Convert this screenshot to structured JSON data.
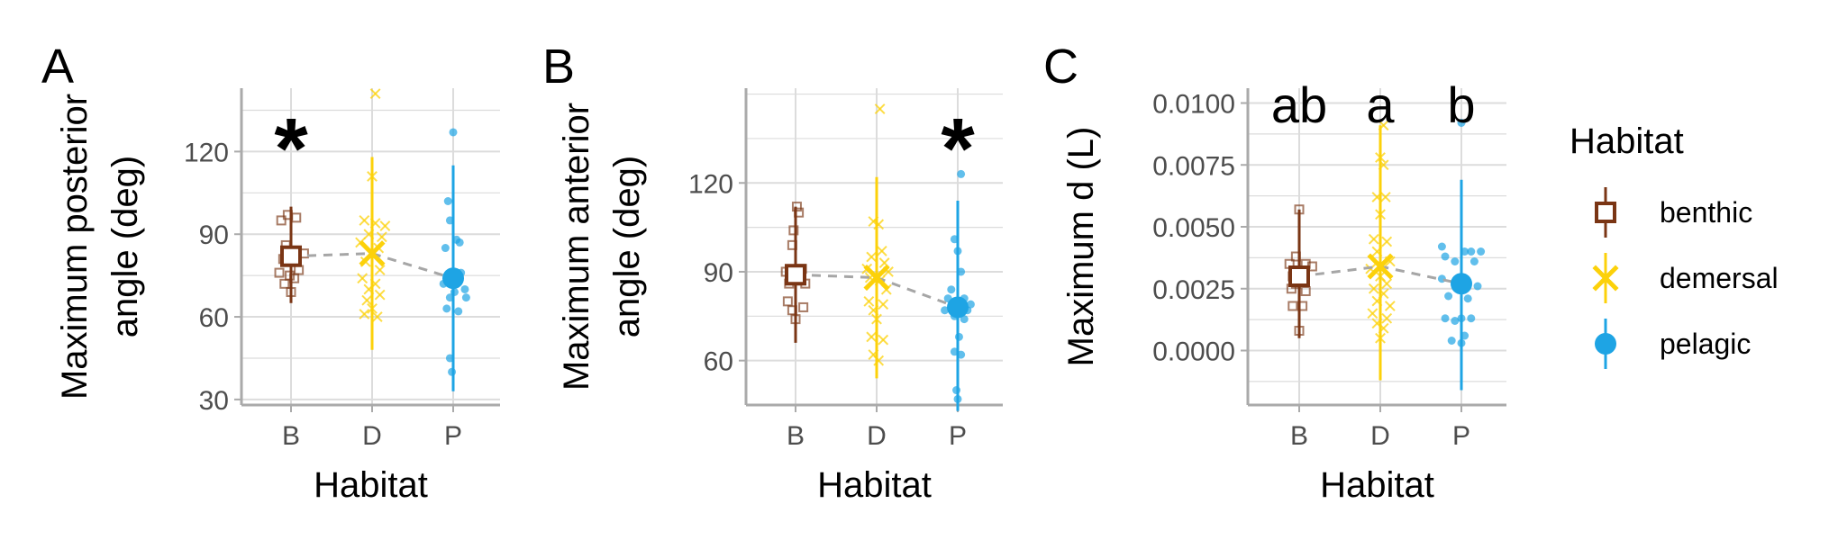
{
  "colors": {
    "benthic": "#7a3514",
    "demersal": "#fcd10a",
    "pelagic": "#1ea4e4",
    "grid": "#dcdcdc",
    "axis": "#aaaaaa",
    "trend": "#a6a6a6"
  },
  "legend": {
    "title": "Habitat",
    "items": [
      {
        "key": "benthic",
        "label": "benthic",
        "shape": "square"
      },
      {
        "key": "demersal",
        "label": "demersal",
        "shape": "cross"
      },
      {
        "key": "pelagic",
        "label": "pelagic",
        "shape": "circle"
      }
    ]
  },
  "chart_data": [
    {
      "type": "scatter",
      "panel": "A",
      "xlabel": "Habitat",
      "ylabel": [
        "Maximum posterior",
        "angle (deg)"
      ],
      "categories": [
        "B",
        "D",
        "P"
      ],
      "ylim": [
        28,
        143
      ],
      "yticks": [
        30,
        60,
        90,
        120
      ],
      "yticklabels": [
        "30",
        "60",
        "90",
        "120"
      ],
      "annotations": [
        {
          "category": "B",
          "text": "*",
          "style": "star"
        }
      ],
      "series": [
        {
          "key": "benthic",
          "mean": 82,
          "lo": 65,
          "hi": 100,
          "points": [
            [
              -0.15,
              95
            ],
            [
              -0.05,
              97
            ],
            [
              0.08,
              96
            ],
            [
              0.2,
              83
            ],
            [
              -0.08,
              86
            ],
            [
              -0.12,
              81
            ],
            [
              -0.18,
              76
            ],
            [
              -0.02,
              75
            ],
            [
              0.12,
              77
            ],
            [
              0.05,
              74
            ],
            [
              -0.1,
              72
            ],
            [
              0.0,
              69
            ]
          ]
        },
        {
          "key": "demersal",
          "mean": 83,
          "lo": 48,
          "hi": 118,
          "points": [
            [
              0.05,
              141
            ],
            [
              0.0,
              111
            ],
            [
              -0.12,
              95
            ],
            [
              0.05,
              94
            ],
            [
              0.2,
              93
            ],
            [
              -0.05,
              90
            ],
            [
              0.15,
              89
            ],
            [
              -0.18,
              87
            ],
            [
              0.1,
              85
            ],
            [
              -0.1,
              80
            ],
            [
              0.12,
              77
            ],
            [
              -0.15,
              74
            ],
            [
              0.05,
              72
            ],
            [
              -0.05,
              70
            ],
            [
              0.12,
              68
            ],
            [
              -0.08,
              66
            ],
            [
              0.0,
              63
            ],
            [
              -0.12,
              61
            ],
            [
              0.08,
              60
            ]
          ]
        },
        {
          "key": "pelagic",
          "mean": 74,
          "lo": 33,
          "hi": 115,
          "points": [
            [
              0.0,
              127
            ],
            [
              -0.08,
              102
            ],
            [
              -0.05,
              95
            ],
            [
              0.05,
              88
            ],
            [
              0.1,
              87
            ],
            [
              -0.12,
              85
            ],
            [
              0.12,
              76
            ],
            [
              -0.15,
              72
            ],
            [
              0.18,
              70
            ],
            [
              0.02,
              69
            ],
            [
              -0.05,
              67
            ],
            [
              0.2,
              67
            ],
            [
              -0.1,
              63
            ],
            [
              0.08,
              62
            ],
            [
              -0.05,
              45
            ],
            [
              -0.02,
              40
            ]
          ]
        }
      ]
    },
    {
      "type": "scatter",
      "panel": "B",
      "xlabel": "Habitat",
      "ylabel": [
        "Maximum anterior",
        "angle (deg)"
      ],
      "categories": [
        "B",
        "D",
        "P"
      ],
      "ylim": [
        45,
        152
      ],
      "yticks": [
        60,
        90,
        120
      ],
      "yticklabels": [
        "60",
        "90",
        "120"
      ],
      "annotations": [
        {
          "category": "P",
          "text": "*",
          "style": "star"
        }
      ],
      "series": [
        {
          "key": "benthic",
          "mean": 89,
          "lo": 66,
          "hi": 112,
          "points": [
            [
              0.02,
              112
            ],
            [
              0.05,
              110
            ],
            [
              -0.03,
              104
            ],
            [
              -0.05,
              99
            ],
            [
              0.1,
              91
            ],
            [
              -0.15,
              90
            ],
            [
              -0.1,
              86
            ],
            [
              0.15,
              86
            ],
            [
              -0.12,
              80
            ],
            [
              0.12,
              78
            ],
            [
              -0.05,
              77
            ],
            [
              0.0,
              74
            ]
          ]
        },
        {
          "key": "demersal",
          "mean": 88,
          "lo": 54,
          "hi": 122,
          "points": [
            [
              0.05,
              145
            ],
            [
              -0.05,
              107
            ],
            [
              0.03,
              106
            ],
            [
              0.08,
              97
            ],
            [
              -0.08,
              95
            ],
            [
              0.12,
              93
            ],
            [
              -0.15,
              91
            ],
            [
              0.18,
              90
            ],
            [
              -0.1,
              88
            ],
            [
              0.05,
              87
            ],
            [
              0.15,
              84
            ],
            [
              -0.12,
              80
            ],
            [
              0.1,
              79
            ],
            [
              -0.05,
              77
            ],
            [
              0.0,
              74
            ],
            [
              -0.08,
              68
            ],
            [
              0.1,
              67
            ],
            [
              -0.05,
              62
            ],
            [
              0.03,
              60
            ]
          ]
        },
        {
          "key": "pelagic",
          "mean": 78,
          "lo": 43,
          "hi": 114,
          "points": [
            [
              0.05,
              123
            ],
            [
              -0.05,
              101
            ],
            [
              0.0,
              97
            ],
            [
              0.05,
              90
            ],
            [
              -0.1,
              84
            ],
            [
              0.1,
              81
            ],
            [
              -0.15,
              81
            ],
            [
              0.2,
              79
            ],
            [
              -0.2,
              77
            ],
            [
              0.15,
              77
            ],
            [
              -0.05,
              75
            ],
            [
              0.1,
              74
            ],
            [
              0.02,
              68
            ],
            [
              -0.05,
              63
            ],
            [
              0.05,
              62
            ],
            [
              -0.02,
              50
            ],
            [
              0.0,
              47
            ]
          ]
        }
      ]
    },
    {
      "type": "scatter",
      "panel": "C",
      "xlabel": "Habitat",
      "ylabel": [
        "Maximum d (L)"
      ],
      "categories": [
        "B",
        "D",
        "P"
      ],
      "ylim": [
        -0.0022,
        0.0106
      ],
      "yticks": [
        0.0,
        0.0025,
        0.005,
        0.0075,
        0.01
      ],
      "yticklabels": [
        "0.0000",
        "0.0025",
        "0.0050",
        "0.0075",
        "0.0100"
      ],
      "annotations": [
        {
          "category": "B",
          "text": "ab",
          "style": "letter"
        },
        {
          "category": "D",
          "text": "a",
          "style": "letter"
        },
        {
          "category": "P",
          "text": "b",
          "style": "letter"
        }
      ],
      "series": [
        {
          "key": "benthic",
          "mean": 0.003,
          "lo": 0.0005,
          "hi": 0.0057,
          "points": [
            [
              0.0,
              0.0057
            ],
            [
              -0.05,
              0.0038
            ],
            [
              -0.15,
              0.0035
            ],
            [
              0.1,
              0.0035
            ],
            [
              0.2,
              0.0034
            ],
            [
              -0.1,
              0.003
            ],
            [
              0.05,
              0.0029
            ],
            [
              -0.05,
              0.0027
            ],
            [
              -0.12,
              0.0025
            ],
            [
              0.1,
              0.0024
            ],
            [
              -0.1,
              0.0018
            ],
            [
              0.05,
              0.0018
            ],
            [
              0.0,
              0.0008
            ]
          ]
        },
        {
          "key": "demersal",
          "mean": 0.0034,
          "lo": -0.0012,
          "hi": 0.0091,
          "points": [
            [
              0.05,
              0.0091
            ],
            [
              0.0,
              0.0078
            ],
            [
              0.05,
              0.0075
            ],
            [
              -0.05,
              0.0062
            ],
            [
              0.08,
              0.0062
            ],
            [
              0.0,
              0.0055
            ],
            [
              -0.1,
              0.0045
            ],
            [
              0.1,
              0.0044
            ],
            [
              -0.05,
              0.004
            ],
            [
              0.15,
              0.0036
            ],
            [
              -0.15,
              0.0033
            ],
            [
              0.0,
              0.003
            ],
            [
              0.1,
              0.0027
            ],
            [
              -0.1,
              0.0025
            ],
            [
              0.05,
              0.0023
            ],
            [
              -0.05,
              0.002
            ],
            [
              0.15,
              0.0018
            ],
            [
              -0.12,
              0.0015
            ],
            [
              0.1,
              0.0013
            ],
            [
              -0.05,
              0.0011
            ],
            [
              0.05,
              0.0009
            ],
            [
              0.0,
              0.0005
            ]
          ]
        },
        {
          "key": "pelagic",
          "mean": 0.0027,
          "lo": -0.0016,
          "hi": 0.0069,
          "points": [
            [
              0.0,
              0.0092
            ],
            [
              -0.3,
              0.0042
            ],
            [
              0.05,
              0.004
            ],
            [
              0.15,
              0.004
            ],
            [
              0.3,
              0.004
            ],
            [
              -0.25,
              0.0038
            ],
            [
              -0.1,
              0.0036
            ],
            [
              0.2,
              0.0036
            ],
            [
              -0.3,
              0.0029
            ],
            [
              0.25,
              0.0026
            ],
            [
              -0.2,
              0.0022
            ],
            [
              0.1,
              0.0021
            ],
            [
              -0.25,
              0.0013
            ],
            [
              0.0,
              0.0013
            ],
            [
              0.15,
              0.0013
            ],
            [
              -0.1,
              0.0012
            ],
            [
              0.05,
              0.0006
            ],
            [
              -0.15,
              0.0004
            ],
            [
              0.0,
              0.0003
            ]
          ]
        }
      ]
    }
  ]
}
